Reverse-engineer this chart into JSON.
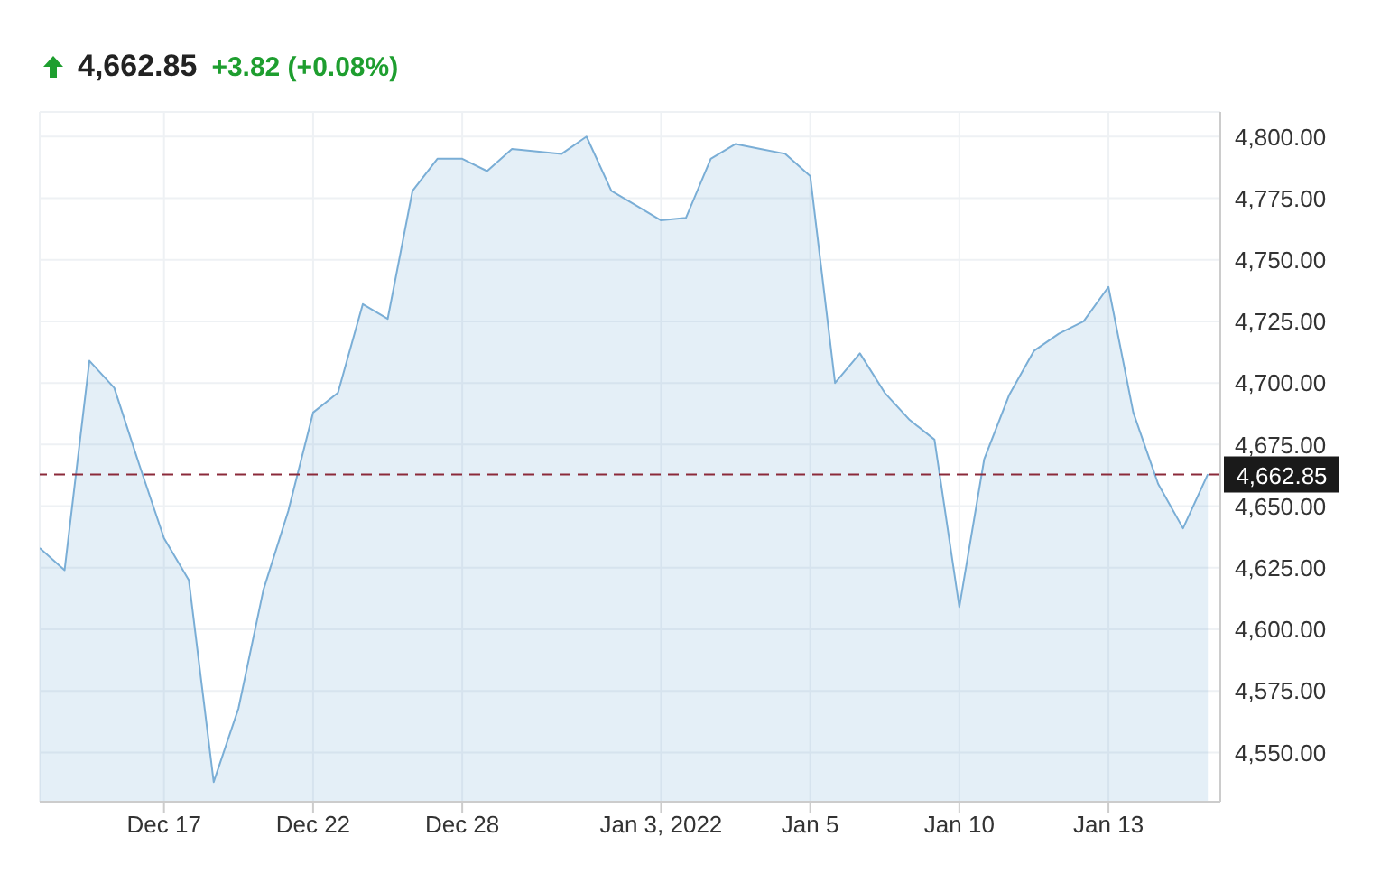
{
  "chart_data": {
    "type": "area",
    "title": "4,662.85",
    "subtitle": "+3.82 (+0.08%)",
    "categories": [
      null,
      null,
      null,
      null,
      null,
      "Dec 17",
      null,
      null,
      null,
      null,
      null,
      "Dec 22",
      null,
      null,
      null,
      null,
      null,
      "Dec 28",
      null,
      null,
      null,
      null,
      null,
      null,
      null,
      "Jan 3, 2022",
      null,
      null,
      null,
      null,
      null,
      "Jan 5",
      null,
      null,
      null,
      null,
      null,
      "Jan 10",
      null,
      null,
      null,
      null,
      null,
      "Jan 13",
      null,
      null,
      null,
      null
    ],
    "series": [
      {
        "color": "#7aaed6",
        "values": [
          4633,
          4624,
          4709,
          4698,
          4667,
          4637,
          4620,
          4538,
          4568,
          4616,
          4648,
          4688,
          4696,
          4732,
          4726,
          4778,
          4791,
          4791,
          4786,
          4795,
          4794,
          4793,
          4800,
          4778,
          4772,
          4766,
          4767,
          4791,
          4797,
          4795,
          4793,
          4784,
          4700,
          4712,
          4696,
          4685,
          4677,
          4609,
          4669,
          4695,
          4713,
          4720,
          4725,
          4739,
          4688,
          4659,
          4641,
          4663
        ]
      }
    ],
    "ylim": [
      4530,
      4810
    ],
    "yticks": [
      {
        "value": 4550,
        "label": "4,550.00"
      },
      {
        "value": 4575,
        "label": "4,575.00"
      },
      {
        "value": 4600,
        "label": "4,600.00"
      },
      {
        "value": 4625,
        "label": "4,625.00"
      },
      {
        "value": 4650,
        "label": "4,650.00"
      },
      {
        "value": 4675,
        "label": "4,675.00"
      },
      {
        "value": 4700,
        "label": "4,700.00"
      },
      {
        "value": 4725,
        "label": "4,725.00"
      },
      {
        "value": 4750,
        "label": "4,750.00"
      },
      {
        "value": 4775,
        "label": "4,775.00"
      },
      {
        "value": 4800,
        "label": "4,800.00"
      }
    ],
    "grid": true,
    "marker": "none",
    "ref_lines": [
      {
        "axis": "y",
        "value": 4662.85,
        "label": "4,662.85",
        "color": "#8b2a3a",
        "line_style": "dashed"
      }
    ]
  }
}
